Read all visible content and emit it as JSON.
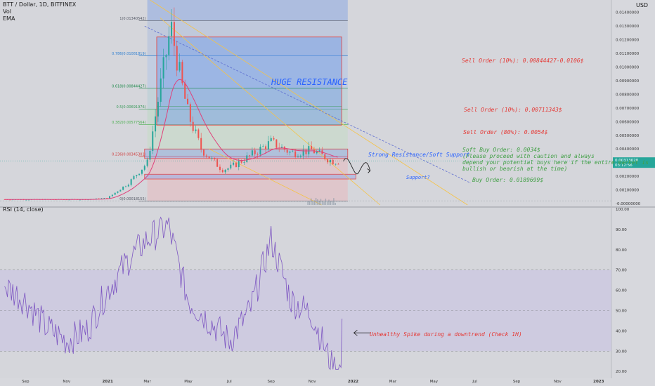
{
  "header": {
    "symbol_line": "BTT / Dollar, 1D, BITFINEX",
    "indicator_vol": "Vol",
    "indicator_ema": "EMA",
    "axis_unit": "USD",
    "rsi_label": "RSI (14, close)"
  },
  "price_axis": {
    "ticks": [
      "0.01400000",
      "0.01300000",
      "0.01200000",
      "0.01100000",
      "0.01000000",
      "0.00900000",
      "0.00800000",
      "0.00700000",
      "0.00600000",
      "0.00500000",
      "0.00400000",
      "0.00300000",
      "0.00200000",
      "0.00100000",
      "-0.00000000"
    ],
    "last_price": "0.00313020",
    "countdown": "03:12:56"
  },
  "rsi_axis": {
    "ticks": [
      "100.00",
      "90.00",
      "80.00",
      "70.00",
      "60.00",
      "50.00",
      "40.00",
      "30.00",
      "20.00"
    ]
  },
  "time_axis": [
    "Sep",
    "Nov",
    "2021",
    "Mar",
    "May",
    "Jul",
    "Sep",
    "Nov",
    "2022",
    "Mar",
    "May",
    "Jul",
    "Sep",
    "Nov",
    "2023"
  ],
  "fib_levels": [
    {
      "label": "1(0.01340542)",
      "color": "#555a66"
    },
    {
      "label": "0.786(0.01081819)",
      "color": "#2f7fd0"
    },
    {
      "label": "0.618(0.00844427)",
      "color": "#1f8a4c"
    },
    {
      "label": "0.5(0.00691976)",
      "color": "#3a9a5a"
    },
    {
      "label": "0.382(0.00577564)",
      "color": "#4caf50"
    },
    {
      "label": "0.236(0.00345301)",
      "color": "#d04040"
    },
    {
      "label": "0(0.00018155)",
      "color": "#555a66"
    }
  ],
  "annotations": {
    "huge_resistance": "HUGE RESISTANCE",
    "sell_order_1": "Sell Order (10%): 0.00844427-0.0106$",
    "sell_order_2": "Sell Order (10%): 0.00711343$",
    "sell_order_3": "Sell Order (80%): 0.0054$",
    "soft_buy_line1": "Soft Buy Order: 0.0034$",
    "soft_buy_line2": "(Please proceed with caution and always",
    "soft_buy_line3": "depend your potential buys here if the entire market is",
    "soft_buy_line4": "bullish or bearish at the time)",
    "strong_resistance": "Strong Resistance/Soft Support",
    "support": "Support?",
    "buy_order": "Buy Order: 0.0189699$",
    "rsi_note": "Unhealthy Spike during a downtrend (Check 1H)"
  },
  "colors": {
    "sell": "#e53935",
    "buy": "#43a047",
    "blue_text": "#2962ff",
    "rsi_line": "#7e57c2",
    "candle_up": "#26a69a",
    "candle_down": "#ef5350"
  },
  "chart_data": [
    {
      "type": "candlestick",
      "ylim": [
        -0.0001,
        0.0145
      ],
      "price_path": [
        {
          "month": "2020-08",
          "price": 0.0003
        },
        {
          "month": "2020-10",
          "price": 0.0003
        },
        {
          "month": "2020-12",
          "price": 0.0003
        },
        {
          "month": "2021-01",
          "price": 0.0004
        },
        {
          "month": "2021-02",
          "price": 0.0015
        },
        {
          "month": "2021-03",
          "price": 0.003
        },
        {
          "month": "2021-03-15",
          "price": 0.007
        },
        {
          "month": "2021-04-05",
          "price": 0.013
        },
        {
          "month": "2021-04-20",
          "price": 0.009
        },
        {
          "month": "2021-05",
          "price": 0.0065
        },
        {
          "month": "2021-05-20",
          "price": 0.004
        },
        {
          "month": "2021-06",
          "price": 0.0034
        },
        {
          "month": "2021-06-20",
          "price": 0.0025
        },
        {
          "month": "2021-07",
          "price": 0.0026
        },
        {
          "month": "2021-08",
          "price": 0.0035
        },
        {
          "month": "2021-09",
          "price": 0.0045
        },
        {
          "month": "2021-10",
          "price": 0.0037
        },
        {
          "month": "2021-11",
          "price": 0.0039
        },
        {
          "month": "2021-12",
          "price": 0.0031
        }
      ]
    },
    {
      "type": "line",
      "title": "RSI (14, close)",
      "ylim": [
        18,
        100
      ],
      "guides": [
        70,
        50,
        30
      ],
      "x": [
        "2020-08",
        "2020-09",
        "2020-10",
        "2020-11",
        "2020-12",
        "2021-01",
        "2021-02",
        "2021-03",
        "2021-04",
        "2021-05",
        "2021-06",
        "2021-07",
        "2021-08",
        "2021-09",
        "2021-10",
        "2021-11",
        "2021-12"
      ],
      "values": [
        62,
        55,
        42,
        35,
        40,
        60,
        75,
        85,
        92,
        55,
        45,
        35,
        50,
        85,
        55,
        48,
        22
      ]
    }
  ]
}
